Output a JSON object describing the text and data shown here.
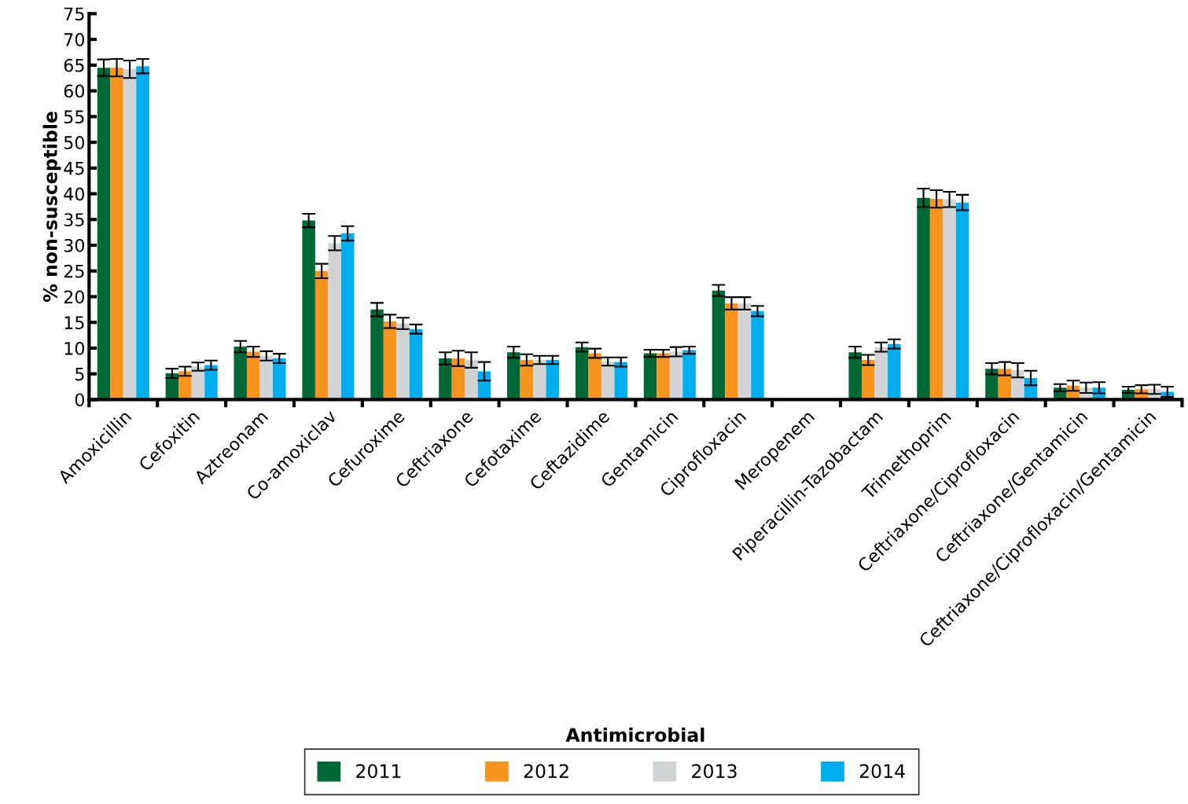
{
  "chart_data": {
    "type": "bar",
    "xlabel": "Antimicrobial",
    "ylabel": "% non-susceptible",
    "categories": [
      "Amoxicillin",
      "Cefoxitin",
      "Aztreonam",
      "Co-amoxiclav",
      "Cefuroxime",
      "Ceftriaxone",
      "Cefotaxime",
      "Ceftazidime",
      "Gentamicin",
      "Ciprofloxacin",
      "Meropenem",
      "Piperacillin-Tazobactam",
      "Trimethoprim",
      "Ceftriaxone/Ciprofloxacin",
      "Ceftriaxone/Gentamicin",
      "Ceftriaxone/Ciprofloxacin/Gentamicin"
    ],
    "series": [
      {
        "name": "2011",
        "color": "#006837",
        "values": [
          64.5,
          5.1,
          10.3,
          34.8,
          17.5,
          8.0,
          9.2,
          10.2,
          9.0,
          21.2,
          0,
          9.2,
          39.2,
          6.0,
          2.3,
          1.9
        ],
        "errors": [
          1.6,
          0.9,
          1.1,
          1.3,
          1.3,
          1.2,
          1.1,
          0.9,
          0.7,
          1.1,
          null,
          1.1,
          1.8,
          1.1,
          0.7,
          0.6
        ]
      },
      {
        "name": "2012",
        "color": "#f7941d",
        "values": [
          64.5,
          5.5,
          9.3,
          25.0,
          15.2,
          8.0,
          7.7,
          9.0,
          9.0,
          18.7,
          0,
          7.7,
          39.0,
          6.0,
          2.7,
          2.0
        ],
        "errors": [
          1.7,
          0.9,
          1.0,
          1.4,
          1.3,
          1.5,
          1.1,
          0.9,
          0.7,
          1.2,
          null,
          1.0,
          1.7,
          1.3,
          1.0,
          0.8
        ]
      },
      {
        "name": "2013",
        "color": "#d1d3d4",
        "values": [
          64.2,
          6.4,
          8.5,
          30.4,
          14.8,
          7.7,
          7.7,
          7.4,
          9.3,
          18.7,
          0,
          10.2,
          38.9,
          5.7,
          2.3,
          2.0
        ],
        "errors": [
          1.7,
          0.8,
          0.9,
          1.4,
          1.1,
          1.5,
          0.8,
          0.8,
          0.9,
          1.2,
          null,
          0.9,
          1.5,
          1.4,
          1.0,
          0.9
        ]
      },
      {
        "name": "2014",
        "color": "#00aeef",
        "values": [
          64.8,
          6.7,
          8.0,
          32.3,
          13.7,
          5.5,
          7.7,
          7.3,
          9.6,
          17.2,
          0,
          10.8,
          38.3,
          4.2,
          2.3,
          1.5
        ],
        "errors": [
          1.4,
          0.9,
          0.9,
          1.4,
          0.9,
          1.8,
          0.8,
          0.9,
          0.7,
          1.0,
          null,
          0.9,
          1.5,
          1.4,
          1.1,
          1.0
        ]
      }
    ],
    "ylim": [
      0,
      75
    ],
    "yticks": [
      0,
      5,
      10,
      15,
      20,
      25,
      30,
      35,
      40,
      45,
      50,
      55,
      60,
      65,
      70,
      75
    ],
    "grid": false,
    "legend": "bottom"
  }
}
